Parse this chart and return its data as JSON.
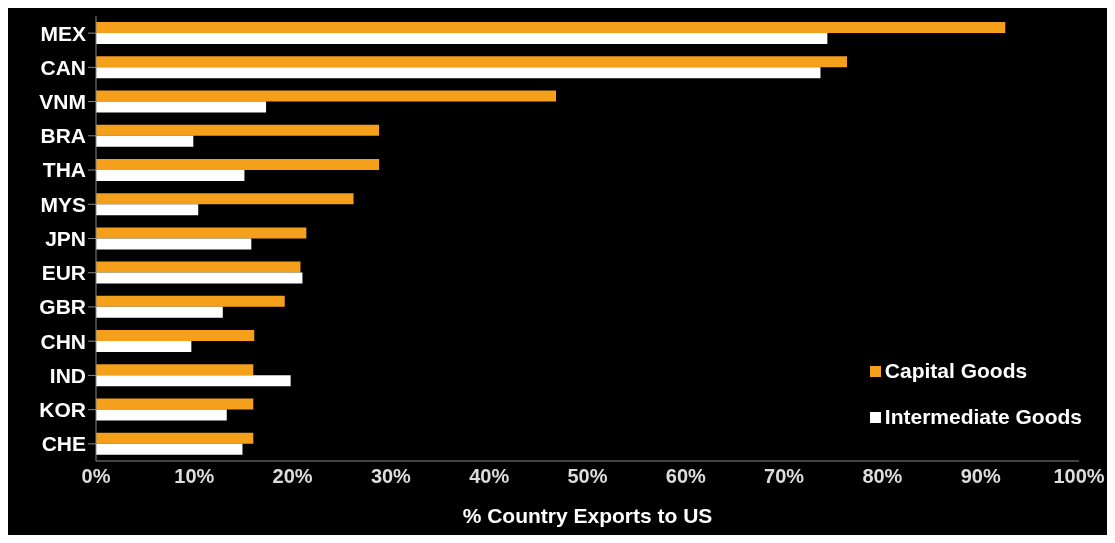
{
  "chart_data": {
    "type": "bar",
    "orientation": "horizontal",
    "xlabel": "% Country Exports to US",
    "categories": [
      "MEX",
      "CAN",
      "VNM",
      "BRA",
      "THA",
      "MYS",
      "JPN",
      "EUR",
      "GBR",
      "CHN",
      "IND",
      "KOR",
      "CHE"
    ],
    "series": [
      {
        "name": "Capital Goods",
        "color": "#f5a01a",
        "values": [
          92.5,
          76.4,
          46.8,
          28.8,
          28.8,
          26.2,
          21.4,
          20.8,
          19.2,
          16.1,
          16.0,
          16.0,
          16.0
        ]
      },
      {
        "name": "Intermediate Goods",
        "color": "#ffffff",
        "values": [
          74.4,
          73.7,
          17.3,
          9.9,
          15.1,
          10.4,
          15.8,
          21.0,
          12.9,
          9.7,
          19.8,
          13.3,
          14.9
        ]
      }
    ],
    "xlim": [
      0,
      100
    ],
    "xticks": [
      {
        "value": 0,
        "label": "0%"
      },
      {
        "value": 10,
        "label": "10%"
      },
      {
        "value": 20,
        "label": "20%"
      },
      {
        "value": 30,
        "label": "30%"
      },
      {
        "value": 40,
        "label": "40%"
      },
      {
        "value": 50,
        "label": "50%"
      },
      {
        "value": 60,
        "label": "60%"
      },
      {
        "value": 70,
        "label": "70%"
      },
      {
        "value": 80,
        "label": "80%"
      },
      {
        "value": 90,
        "label": "90%"
      },
      {
        "value": 100,
        "label": "100%"
      }
    ],
    "grid": false,
    "legend": "bottom right"
  }
}
